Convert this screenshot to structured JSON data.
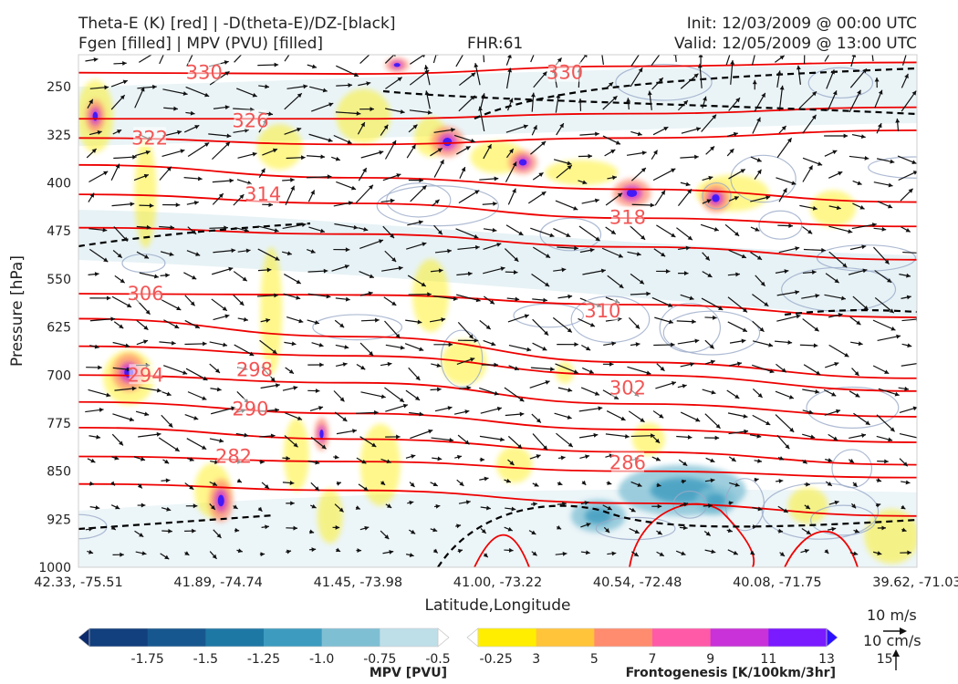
{
  "header": {
    "title_line1": "Theta-E (K) [red] | -D(theta-E)/DZ-[black]",
    "title_line2": "Fgen [filled] | MPV (PVU) [filled]",
    "fhr": "FHR:61",
    "init": "Init: 12/03/2009 @ 00:00 UTC",
    "valid": "Valid: 12/05/2009 @ 13:00 UTC"
  },
  "chart_data": {
    "type": "cross-section",
    "xlabel": "Latitude,Longitude",
    "ylabel": "Pressure [hPa]",
    "x_ticks": [
      "42.33, -75.51",
      "41.89, -74.74",
      "41.45, -73.98",
      "41.00, -73.22",
      "40.54, -72.48",
      "40.08, -71.75",
      "39.62, -71.03"
    ],
    "y_ticks": [
      250,
      325,
      400,
      475,
      550,
      625,
      700,
      775,
      850,
      925,
      1000
    ],
    "ylim": [
      1000,
      200
    ],
    "theta_e_labels": [
      {
        "value": "330",
        "x": 0.15,
        "p": 228
      },
      {
        "value": "330",
        "x": 0.58,
        "p": 228
      },
      {
        "value": "326",
        "x": 0.205,
        "p": 303
      },
      {
        "value": "322",
        "x": 0.085,
        "p": 330
      },
      {
        "value": "318",
        "x": 0.655,
        "p": 454
      },
      {
        "value": "314",
        "x": 0.22,
        "p": 418
      },
      {
        "value": "310",
        "x": 0.625,
        "p": 600
      },
      {
        "value": "306",
        "x": 0.08,
        "p": 573
      },
      {
        "value": "302",
        "x": 0.655,
        "p": 720
      },
      {
        "value": "298",
        "x": 0.21,
        "p": 692
      },
      {
        "value": "294",
        "x": 0.08,
        "p": 700
      },
      {
        "value": "290",
        "x": 0.205,
        "p": 753
      },
      {
        "value": "286",
        "x": 0.655,
        "p": 837
      },
      {
        "value": "282",
        "x": 0.185,
        "p": 827
      }
    ],
    "mpv_colorbar": {
      "label": "MPV [PVU]",
      "ticks": [
        "-1.75",
        "-1.5",
        "-1.25",
        "-1.0",
        "-0.75",
        "-0.5",
        "-0.25"
      ],
      "colors": [
        "#0b2a6b",
        "#123f7d",
        "#17578f",
        "#1e78a4",
        "#3d9bbf",
        "#7fbfd4",
        "#bfdfe8",
        "#ffffff"
      ]
    },
    "fgen_colorbar": {
      "label": "Frontogenesis [K/100km/3hr]",
      "ticks": [
        "3",
        "5",
        "7",
        "9",
        "11",
        "13",
        "15"
      ],
      "colors": [
        "#ffffff",
        "#ffee00",
        "#ffc43a",
        "#ff8c6e",
        "#ff5aa8",
        "#c832d8",
        "#7a1aff",
        "#2a10ff"
      ]
    },
    "wind_reference": {
      "u_label": "10 m/s",
      "w_label": "10 cm/s"
    },
    "colors": {
      "theta_e": "#ee0000",
      "dthetae_dz": "#000000",
      "mpv_outline": "#9aaac8",
      "arrow": "#111111"
    }
  }
}
